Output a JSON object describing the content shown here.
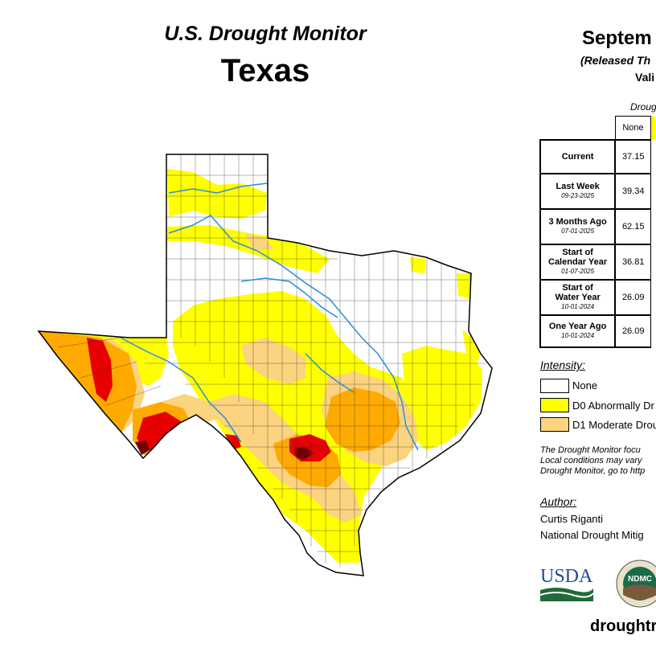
{
  "header": {
    "title": "U.S. Drought Monitor",
    "state": "Texas",
    "date": "Septem",
    "released": "(Released Th",
    "valid": "Vali"
  },
  "stats": {
    "category_header": "Drough",
    "columns": [
      "None"
    ],
    "rows": [
      {
        "label": "Current",
        "date": "",
        "none": "37.15"
      },
      {
        "label": "Last Week",
        "date": "09-23-2025",
        "none": "39.34"
      },
      {
        "label": "3 Months Ago",
        "date": "07-01-2025",
        "none": "62.15"
      },
      {
        "label_lines": [
          "Start of",
          "Calendar Year"
        ],
        "date": "01-07-2025",
        "none": "36.81"
      },
      {
        "label_lines": [
          "Start of",
          "Water Year"
        ],
        "date": "10-01-2024",
        "none": "26.09"
      },
      {
        "label": "One Year Ago",
        "date": "10-01-2024",
        "none": "26.09"
      }
    ]
  },
  "legend": {
    "title": "Intensity:",
    "items": [
      {
        "label": "None",
        "color": "#ffffff"
      },
      {
        "label": "D0 Abnormally Dr",
        "color": "#ffff00"
      },
      {
        "label": "D1 Moderate Drou",
        "color": "#fcd37f"
      }
    ],
    "map_colors": {
      "d2": "#ffaa00",
      "d3": "#e60000",
      "d4": "#730000"
    }
  },
  "note": [
    "The Drought Monitor focu",
    "Local conditions may vary",
    "Drought Monitor, go to http"
  ],
  "author": {
    "title": "Author:",
    "name": "Curtis Riganti",
    "org": "National Drought Mitig"
  },
  "logos": {
    "usda": "USDA",
    "ndmc": "NDMC"
  },
  "url": "droughtr"
}
